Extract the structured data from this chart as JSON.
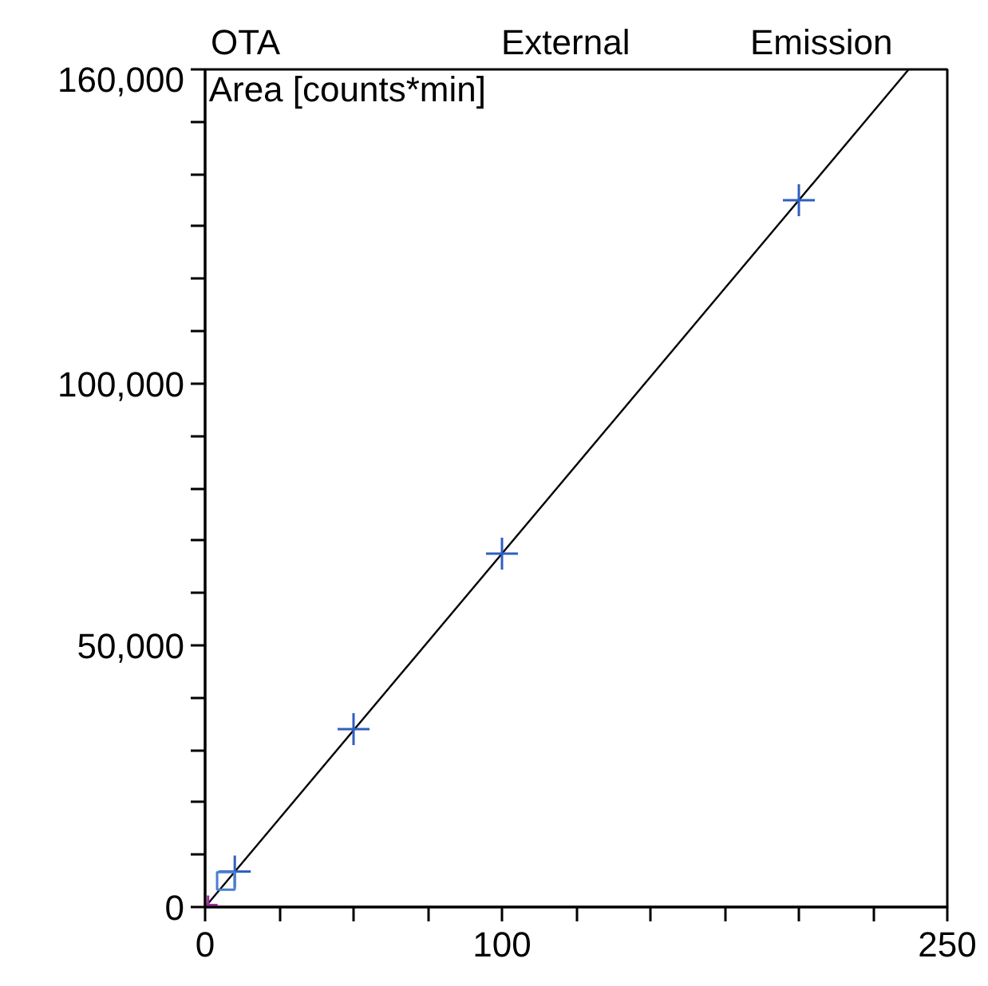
{
  "chart_data": {
    "type": "scatter",
    "title": "OTA",
    "annotations": [
      "External",
      "Emission"
    ],
    "ylabel": "Area  [counts*min]",
    "xlim": [
      0,
      250
    ],
    "ylim": [
      0,
      160000
    ],
    "xticks": [
      0,
      {
        "value": 25,
        "label": null
      },
      {
        "value": 50,
        "label": null
      },
      {
        "value": 75,
        "label": null
      },
      100,
      {
        "value": 125,
        "label": null
      },
      {
        "value": 150,
        "label": null
      },
      {
        "value": 175,
        "label": null
      },
      {
        "value": 200,
        "label": null
      },
      {
        "value": 225,
        "label": null
      },
      250
    ],
    "yticks": [
      0,
      {
        "value": 10000,
        "label": null
      },
      {
        "value": 20000,
        "label": null
      },
      {
        "value": 30000,
        "label": null
      },
      {
        "value": 40000,
        "label": null
      },
      {
        "value": 50000,
        "label": "50,000"
      },
      {
        "value": 60000,
        "label": null
      },
      {
        "value": 70000,
        "label": null
      },
      {
        "value": 80000,
        "label": null
      },
      {
        "value": 90000,
        "label": null
      },
      {
        "value": 100000,
        "label": "100,000"
      },
      {
        "value": 110000,
        "label": null
      },
      {
        "value": 120000,
        "label": null
      },
      {
        "value": 130000,
        "label": null
      },
      {
        "value": 140000,
        "label": null
      },
      {
        "value": 150000,
        "label": null
      },
      {
        "value": 160000,
        "label": "160,000"
      }
    ],
    "grid": false,
    "series": [
      {
        "type": "line",
        "color": "#000000",
        "marker": "none",
        "line_style": "solid",
        "x": [
          0,
          237
        ],
        "values": [
          0,
          160000
        ]
      },
      {
        "marker": "cross",
        "color": "#2f5fbf",
        "x": [
          10,
          50,
          100,
          200
        ],
        "values": [
          6800,
          34000,
          67500,
          135000
        ]
      },
      {
        "marker": "cross",
        "color": "#a0309f",
        "x": [
          1
        ],
        "values": [
          400
        ]
      },
      {
        "marker": "square",
        "color": "#4a7fd0",
        "x": [
          7
        ],
        "values": [
          5000
        ]
      }
    ]
  }
}
